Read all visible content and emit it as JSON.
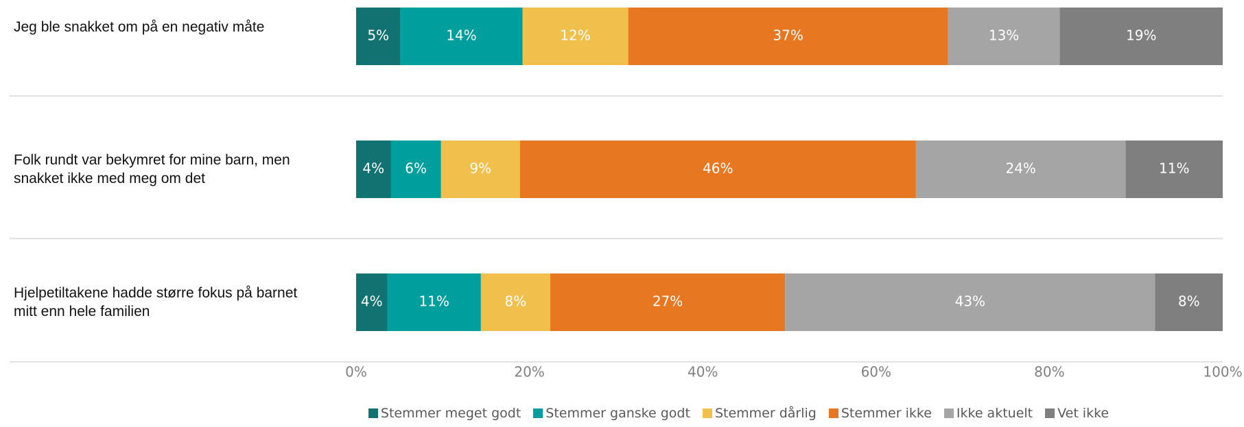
{
  "chart_data": {
    "type": "bar",
    "orientation": "horizontal",
    "stacked": true,
    "categories": [
      "Jeg ble snakket om på en negativ måte",
      "Folk rundt var bekymret for mine barn, men snakket ikke med meg om det",
      "Hjelpetiltakene hadde større fokus på barnet mitt enn hele familien"
    ],
    "series": [
      {
        "name": "Stemmer meget godt",
        "color": "#127272",
        "values": [
          5.1,
          4.0,
          3.6
        ],
        "value_labels": [
          "5%",
          "4%",
          "4%"
        ]
      },
      {
        "name": "Stemmer ganske godt",
        "color": "#009e9c",
        "values": [
          14.1,
          5.8,
          10.8
        ],
        "value_labels": [
          "14%",
          "6%",
          "11%"
        ]
      },
      {
        "name": "Stemmer dårlig",
        "color": "#f0bf4c",
        "values": [
          12.2,
          9.1,
          8.0
        ],
        "value_labels": [
          "12%",
          "9%",
          "8%"
        ]
      },
      {
        "name": "Stemmer ikke",
        "color": "#e87722",
        "values": [
          36.9,
          45.7,
          27.1
        ],
        "value_labels": [
          "37%",
          "46%",
          "27%"
        ]
      },
      {
        "name": "Ikke aktuelt",
        "color": "#a5a5a5",
        "values": [
          12.9,
          24.2,
          42.7
        ],
        "value_labels": [
          "13%",
          "24%",
          "43%"
        ]
      },
      {
        "name": "Vet ikke",
        "color": "#7f7f7f",
        "values": [
          18.8,
          11.2,
          7.8
        ],
        "value_labels": [
          "19%",
          "11%",
          "8%"
        ]
      }
    ],
    "xlim": [
      0,
      100
    ],
    "xticks": [
      {
        "value": 0,
        "label": "0%"
      },
      {
        "value": 20,
        "label": "20%"
      },
      {
        "value": 40,
        "label": "40%"
      },
      {
        "value": 60,
        "label": "60%"
      },
      {
        "value": 80,
        "label": "80%"
      },
      {
        "value": 100,
        "label": "100%"
      }
    ]
  }
}
